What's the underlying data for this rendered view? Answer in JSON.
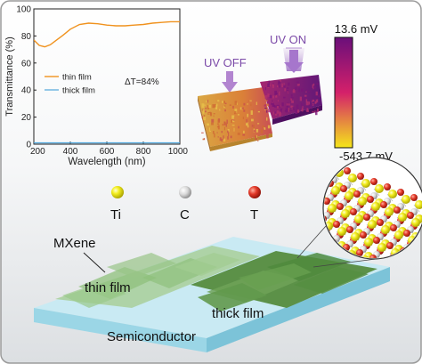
{
  "chart_data": {
    "type": "line",
    "xlabel": "Wavelength",
    "xlabel_unit": "nm",
    "ylabel": "Transmittance (%)",
    "xlim": [
      200,
      1000
    ],
    "ylim": [
      0,
      100
    ],
    "x_ticks": [
      "200",
      "400",
      "600",
      "800",
      "1000"
    ],
    "y_ticks": [
      "0",
      "20",
      "40",
      "60",
      "80",
      "100"
    ],
    "legend_placement": "center-left",
    "annotation": "ΔT=84%",
    "series": [
      {
        "name": "thin film",
        "color": "#f0921e",
        "x": [
          200,
          230,
          260,
          290,
          320,
          360,
          400,
          450,
          500,
          550,
          600,
          650,
          700,
          750,
          800,
          850,
          900,
          950,
          1000
        ],
        "y": [
          77,
          73,
          72,
          73.5,
          76.5,
          80.5,
          85,
          88.5,
          89.5,
          89,
          88,
          87.5,
          87.5,
          88,
          88.5,
          89.5,
          90,
          90.5,
          90.5
        ]
      },
      {
        "name": "thick film",
        "color": "#4fa6dc",
        "x": [
          200,
          400,
          600,
          800,
          1000
        ],
        "y": [
          1,
          1,
          1,
          1,
          1
        ]
      }
    ]
  },
  "uv_map": {
    "label_off": "UV OFF",
    "label_on": "UV ON",
    "colorbar_max": "13.6 mV",
    "colorbar_min": "-543.7 mV",
    "colors": {
      "top": "#6a0f7a",
      "mid": "#d4206a",
      "bottom": "#f5e61a"
    }
  },
  "legend_atoms": [
    {
      "label": "Ti",
      "color": "#f3ee20"
    },
    {
      "label": "C",
      "color": "#d8d8d8"
    },
    {
      "label": "T",
      "color": "#e33a2a"
    }
  ],
  "schematic": {
    "mxene": "MXene",
    "thin_film": "thin film",
    "thick_film": "thick film",
    "substrate": "Semiconductor"
  },
  "colors": {
    "border": "#9a9a9a",
    "substrate_top": "#c9eaf3",
    "substrate_side": "#8fd0e2",
    "thin_film": "#8fc07c",
    "thick_film": "#5c9148"
  }
}
